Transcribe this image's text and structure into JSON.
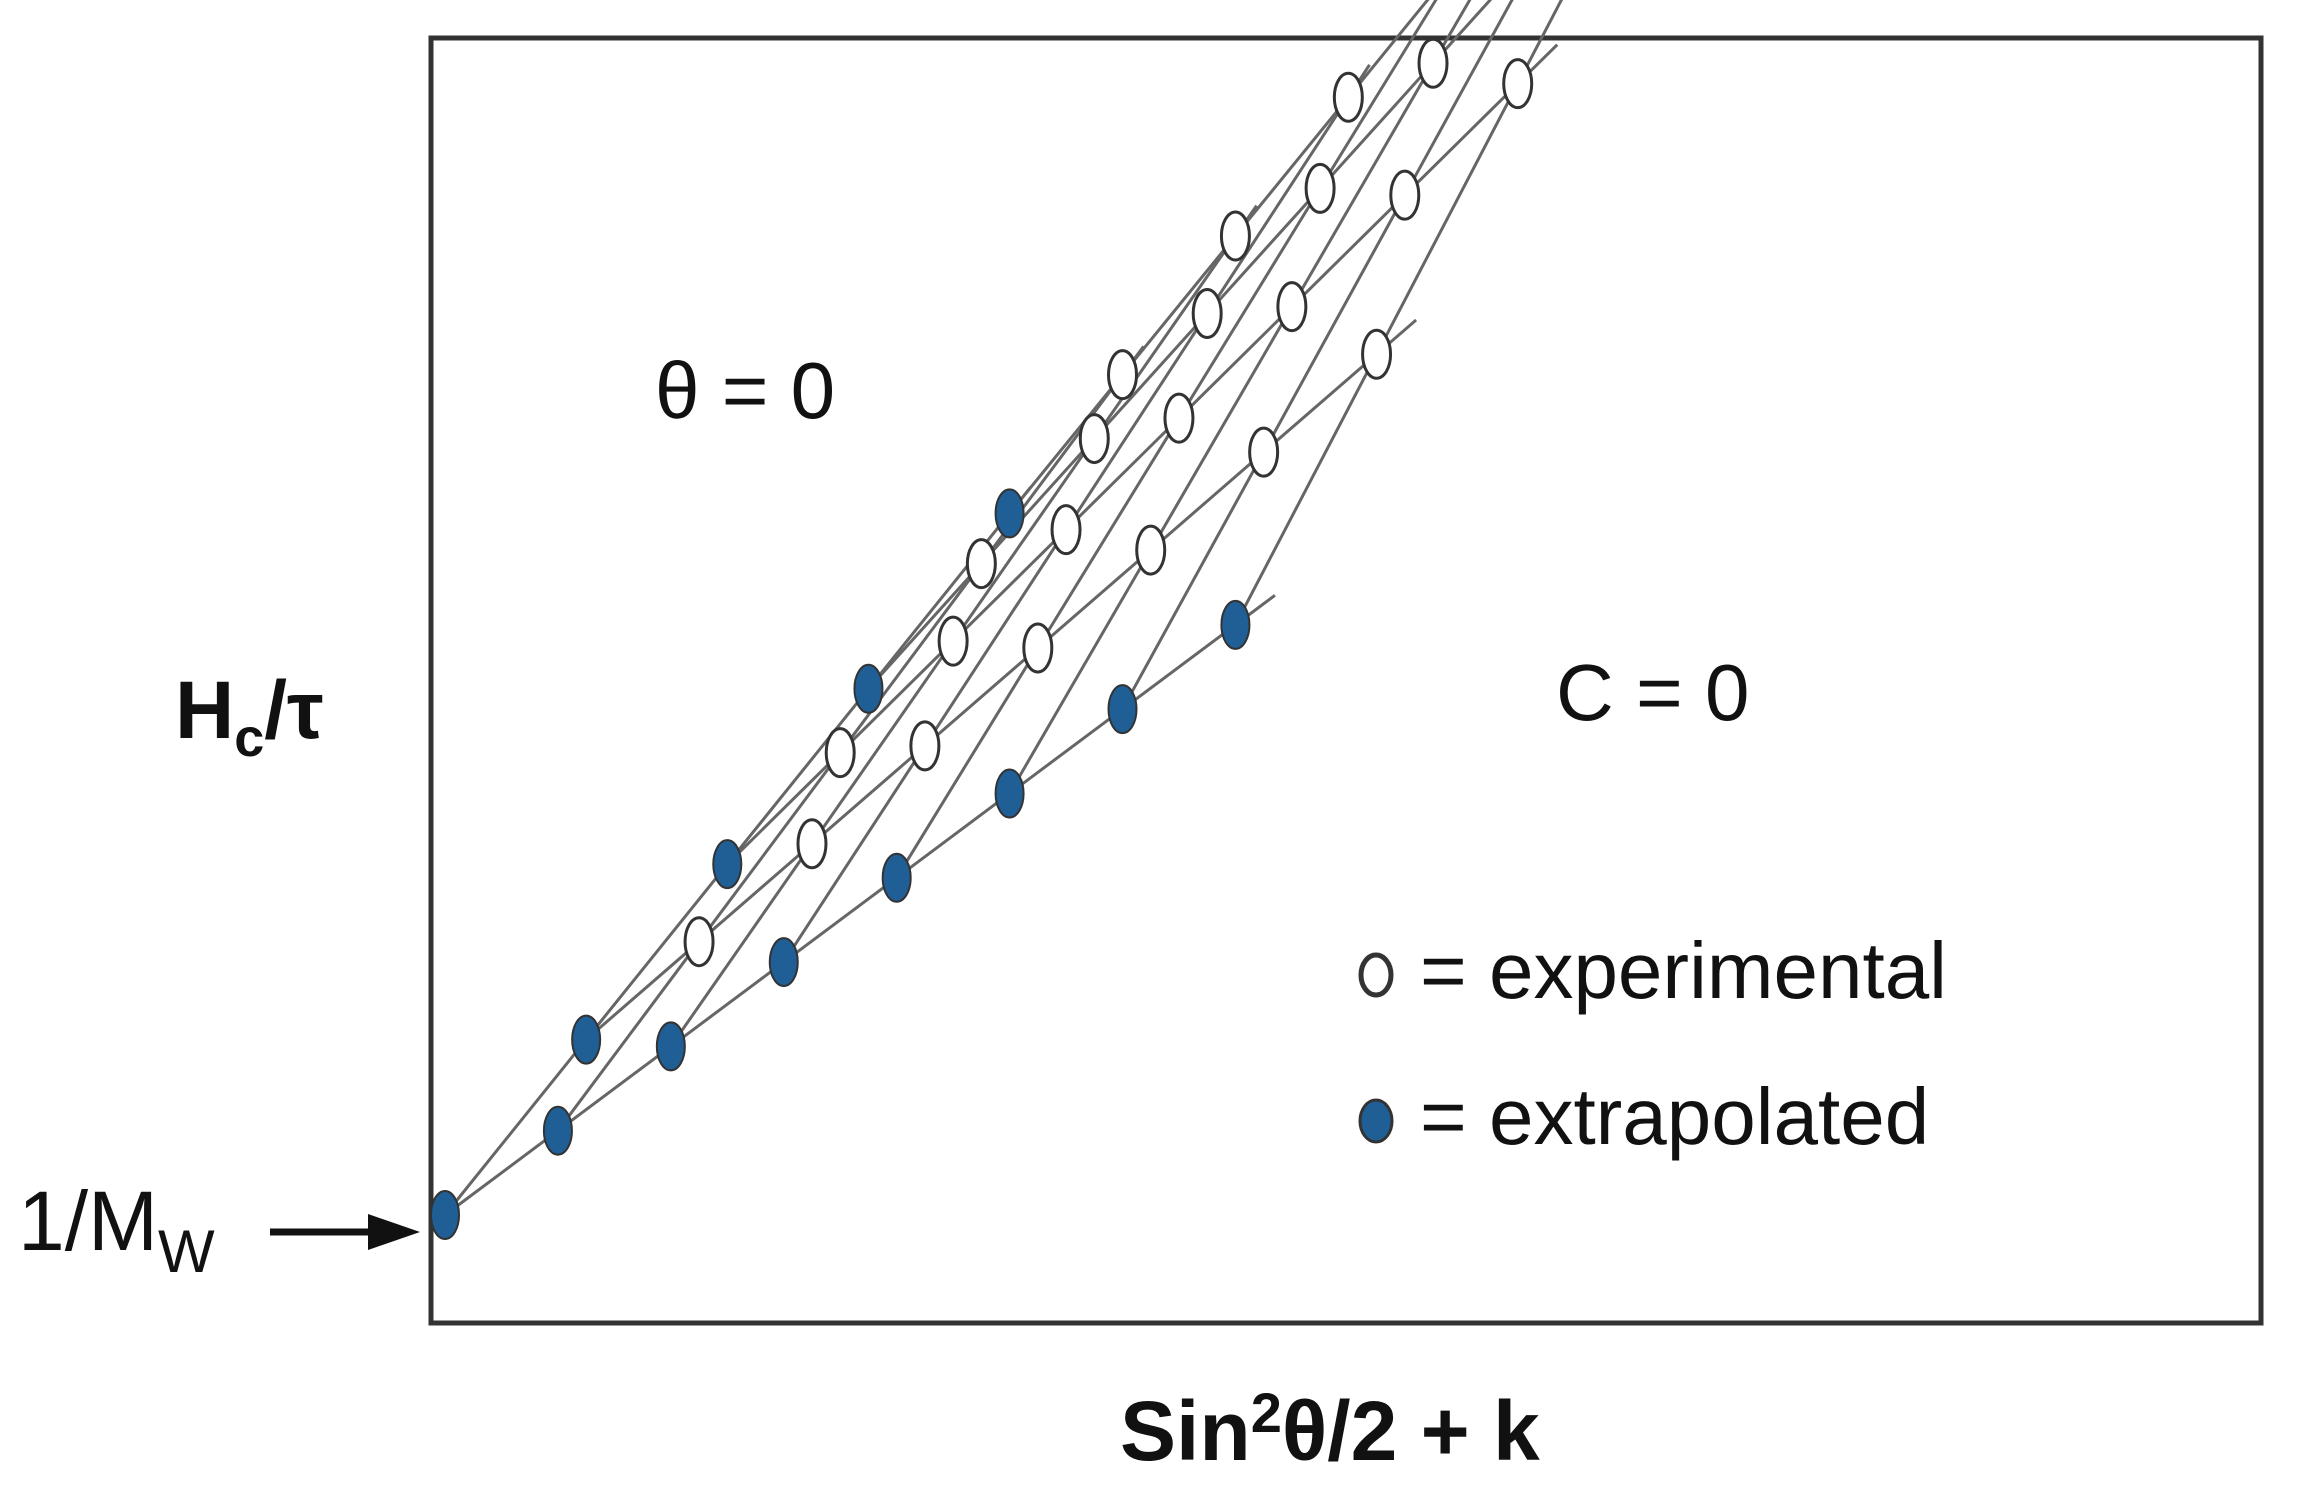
{
  "chart_data": {
    "type": "scatter",
    "subtype": "zimm-grid",
    "title": "",
    "xlabel": {
      "main": "Sin",
      "sup": "2",
      "rest": "θ/2 + k"
    },
    "ylabel": {
      "main": "H",
      "sub": "c",
      "rest": "/τ"
    },
    "intercept_label": {
      "main": "1/M",
      "sub": "W"
    },
    "annotations": {
      "theta_zero": "θ = 0",
      "c_zero": "C = 0"
    },
    "legend": {
      "placement": "lower-right",
      "experimental_label": "= experimental",
      "extrapolated_label": "= extrapolated"
    },
    "colors": {
      "experimental_fill": "#ffffff",
      "extrapolated_fill": "#1f5f96",
      "grid_line": "#666666",
      "marker_stroke": "#333333",
      "frame": "#333333"
    },
    "axes": {
      "xlim": [
        0,
        12
      ],
      "ylim": [
        0,
        8.2
      ],
      "ticks_shown": false
    },
    "grid": {
      "note": "Points at (i = concentration index, j = angle index); x = 1.25*i + j, y = 1.29*i + 0.62*j + 0.1*i*j",
      "concentration_levels": [
        0,
        1,
        2,
        3,
        4
      ],
      "angle_levels": [
        0,
        1,
        2,
        3,
        4,
        5,
        6,
        7
      ],
      "c_slope": 1.29,
      "theta_slope": 0.62,
      "cross_term": 0.1,
      "x_step_c": 1.25,
      "x_step_theta": 1.0,
      "extrapolated_rule": "i = 0 or j = 0"
    }
  }
}
